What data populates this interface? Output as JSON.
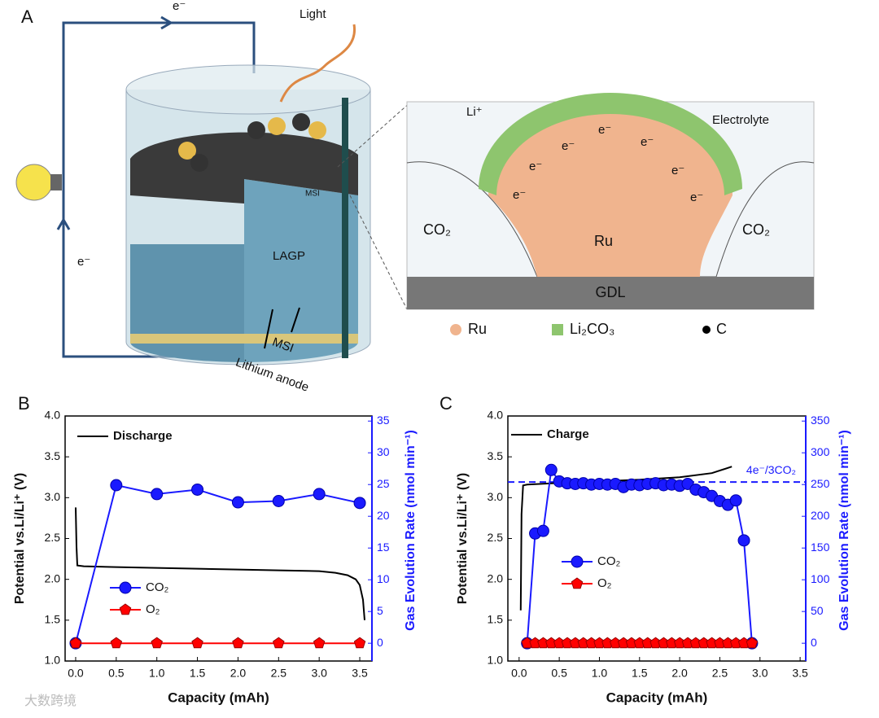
{
  "panel_a": {
    "label": "A",
    "electron_top": "e⁻",
    "electron_left": "e⁻",
    "light": "Light",
    "lagp": "LAGP",
    "msi_small": "MSI",
    "msi": "MSI",
    "lithium_anode": "Lithium anode",
    "inset": {
      "li": "Li⁺",
      "electrolyte": "Electrolyte",
      "electrons": [
        "e⁻",
        "e⁻",
        "e⁻",
        "e⁻",
        "e⁻",
        "e⁻",
        "e⁻"
      ],
      "co2_left": "CO₂",
      "co2_right": "CO₂",
      "ru": "Ru",
      "gdl": "GDL"
    },
    "legend": [
      "Ru",
      "Li₂CO₃",
      "C"
    ]
  },
  "watermark": "大数跨境",
  "chart_data": [
    {
      "type": "line",
      "panel": "B",
      "xlabel": "Capacity (mAh)",
      "ylabel": "Potential vs.Li/Li⁺ (V)",
      "y2label": "Gas Evolution Rate (nmol min⁻¹)",
      "xlim": [
        -0.13,
        3.65
      ],
      "xticks": [
        {
          "value": 0,
          "label": "0.0"
        },
        0.5,
        {
          "value": 1,
          "label": "1.0"
        },
        1.5,
        {
          "value": 2,
          "label": "2.0"
        },
        2.5,
        {
          "value": 3,
          "label": "3.0"
        },
        3.5
      ],
      "ylim": [
        1,
        4
      ],
      "yticks": [
        {
          "value": 1,
          "label": "1.0"
        },
        1.5,
        {
          "value": 2,
          "label": "2.0"
        },
        2.5,
        {
          "value": 3,
          "label": "3.0"
        },
        3.5,
        {
          "value": 4,
          "label": "4.0"
        }
      ],
      "y2lim": [
        -2.8,
        35.8
      ],
      "y2ticks": [
        0,
        5,
        10,
        15,
        20,
        25,
        30,
        35
      ],
      "series": [
        {
          "name": "Discharge",
          "color": "#000000",
          "x": [
            0,
            0.01,
            0.02,
            0.1,
            0.5,
            1.0,
            1.5,
            2.0,
            2.5,
            3.0,
            3.2,
            3.35,
            3.45,
            3.5,
            3.54,
            3.56
          ],
          "values": [
            2.88,
            2.4,
            2.17,
            2.16,
            2.15,
            2.14,
            2.13,
            2.12,
            2.11,
            2.1,
            2.08,
            2.05,
            2.0,
            1.93,
            1.75,
            1.5
          ]
        },
        {
          "name": "CO₂",
          "color": "#1a1aff",
          "axis": "y2",
          "marker": "circle",
          "x": [
            0,
            0.5,
            1.0,
            1.5,
            2.0,
            2.5,
            3.0,
            3.5
          ],
          "values": [
            0,
            24.9,
            23.5,
            24.2,
            22.2,
            22.4,
            23.5,
            22.1
          ]
        },
        {
          "name": "O₂",
          "color": "#ff0000",
          "axis": "y2",
          "marker": "pentagon",
          "x": [
            0,
            0.5,
            1.0,
            1.5,
            2.0,
            2.5,
            3.0,
            3.5
          ],
          "values": [
            0,
            0,
            0,
            0,
            0,
            0,
            0,
            0
          ]
        }
      ]
    },
    {
      "type": "line",
      "panel": "C",
      "xlabel": "Capacity (mAh)",
      "ylabel": "Potential vs.Li/Li⁺ (V)",
      "y2label": "Gas Evolution Rate (nmol min⁻¹)",
      "xlim": [
        -0.14,
        3.57
      ],
      "xticks": [
        {
          "value": 0,
          "label": "0.0"
        },
        0.5,
        {
          "value": 1,
          "label": "1.0"
        },
        1.5,
        {
          "value": 2,
          "label": "2.0"
        },
        2.5,
        {
          "value": 3,
          "label": "3.0"
        },
        3.5
      ],
      "ylim": [
        1,
        4
      ],
      "yticks": [
        {
          "value": 1,
          "label": "1.0"
        },
        1.5,
        {
          "value": 2,
          "label": "2.0"
        },
        2.5,
        {
          "value": 3,
          "label": "3.0"
        },
        3.5,
        {
          "value": 4,
          "label": "4.0"
        }
      ],
      "y2lim": [
        -28,
        358
      ],
      "y2ticks": [
        0,
        50,
        100,
        150,
        200,
        250,
        300,
        350
      ],
      "reference_line": {
        "value": 254,
        "axis": "y2",
        "label": "4e⁻/3CO₂"
      },
      "series": [
        {
          "name": "Charge",
          "color": "#000000",
          "x": [
            0.02,
            0.03,
            0.05,
            0.1,
            0.5,
            1.0,
            1.5,
            2.0,
            2.4,
            2.65
          ],
          "values": [
            1.62,
            2.8,
            3.15,
            3.16,
            3.18,
            3.2,
            3.22,
            3.25,
            3.3,
            3.38
          ]
        },
        {
          "name": "CO₂",
          "color": "#1a1aff",
          "axis": "y2",
          "marker": "circle",
          "x": [
            0.1,
            0.2,
            0.3,
            0.4,
            0.5,
            0.6,
            0.7,
            0.8,
            0.9,
            1.0,
            1.1,
            1.2,
            1.3,
            1.4,
            1.5,
            1.6,
            1.7,
            1.8,
            1.9,
            2.0,
            2.1,
            2.2,
            2.3,
            2.4,
            2.5,
            2.6,
            2.7,
            2.8,
            2.9
          ],
          "values": [
            0,
            173,
            177,
            273,
            255,
            252,
            251,
            252,
            250,
            251,
            250,
            251,
            246,
            250,
            249,
            251,
            252,
            249,
            250,
            248,
            251,
            242,
            238,
            232,
            224,
            218,
            225,
            162,
            0
          ]
        },
        {
          "name": "O₂",
          "color": "#ff0000",
          "axis": "y2",
          "marker": "pentagon",
          "x": [
            0.1,
            0.2,
            0.3,
            0.4,
            0.5,
            0.6,
            0.7,
            0.8,
            0.9,
            1.0,
            1.1,
            1.2,
            1.3,
            1.4,
            1.5,
            1.6,
            1.7,
            1.8,
            1.9,
            2.0,
            2.1,
            2.2,
            2.3,
            2.4,
            2.5,
            2.6,
            2.7,
            2.8,
            2.9
          ],
          "values": [
            0,
            0,
            0,
            0,
            0,
            0,
            0,
            0,
            0,
            0,
            0,
            0,
            0,
            0,
            0,
            0,
            0,
            0,
            0,
            0,
            0,
            0,
            0,
            0,
            0,
            0,
            0,
            0,
            0
          ]
        }
      ]
    }
  ]
}
